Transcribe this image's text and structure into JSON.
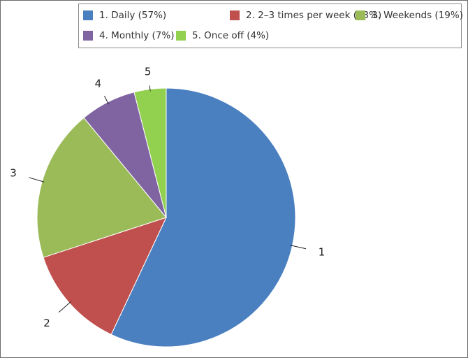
{
  "chart_data": {
    "type": "pie",
    "start": "top",
    "direction": "clockwise",
    "legend_position": "top",
    "slices": [
      {
        "label": "1",
        "legend": "1. Daily (57%)",
        "value": 57,
        "color": "#4a7fc0"
      },
      {
        "label": "2",
        "legend": "2. 2–3 times per week (13%)",
        "value": 13,
        "color": "#c0504d"
      },
      {
        "label": "3",
        "legend": "3. Weekends (19%)",
        "value": 19,
        "color": "#9bbb59"
      },
      {
        "label": "4",
        "legend": "4. Monthly (7%)",
        "value": 7,
        "color": "#8064a2"
      },
      {
        "label": "5",
        "legend": "5. Once off (4%)",
        "value": 4,
        "color": "#92d050"
      }
    ]
  }
}
